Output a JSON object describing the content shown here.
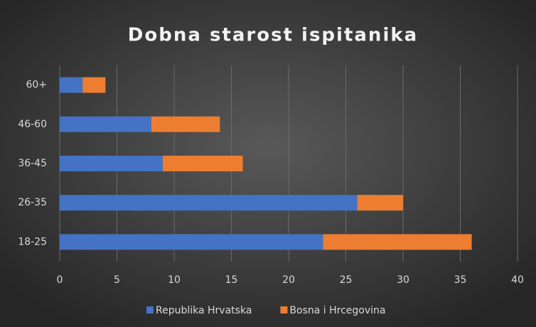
{
  "chart_data": {
    "type": "bar",
    "orientation": "horizontal",
    "stacked": true,
    "title": "Dobna starost ispitanika",
    "categories": [
      "18-25",
      "26-35",
      "36-45",
      "46-60",
      "60+"
    ],
    "series": [
      {
        "name": "Republika Hrvatska",
        "color": "#4472c4",
        "values": [
          23,
          26,
          9,
          8,
          2
        ]
      },
      {
        "name": "Bosna i Hrcegovina",
        "color": "#ed7d31",
        "values": [
          13,
          4,
          7,
          6,
          2
        ]
      }
    ],
    "xlim": [
      0,
      40
    ],
    "xticks": [
      0,
      5,
      10,
      15,
      20,
      25,
      30,
      35,
      40
    ],
    "grid": true,
    "legend": "bottom"
  }
}
